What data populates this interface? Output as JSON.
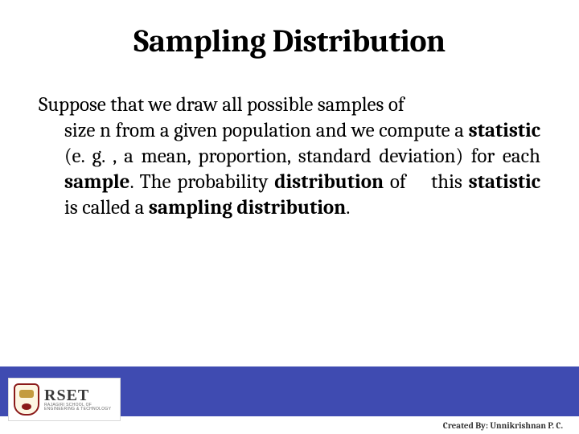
{
  "slide": {
    "title": "Sampling Distribution",
    "body": {
      "line1": "Suppose that we draw all possible samples of",
      "rest_parts": [
        {
          "t": "size n from a given population and we compute a ",
          "b": false
        },
        {
          "t": "statistic",
          "b": true
        },
        {
          "t": " (e. g. , a mean, proportion, standard deviation) for each ",
          "b": false
        },
        {
          "t": "sample",
          "b": true
        },
        {
          "t": ". The probability ",
          "b": false
        },
        {
          "t": "distribution",
          "b": true
        },
        {
          "t": " of    this ",
          "b": false
        },
        {
          "t": "statistic",
          "b": true
        },
        {
          "t": " is called a ",
          "b": false
        },
        {
          "t": "sampling distribution",
          "b": true
        },
        {
          "t": ".",
          "b": false
        }
      ]
    }
  },
  "footer": {
    "band_color": "#3f4bb1",
    "logo_main": "RSET",
    "logo_sub1": "RAJAGIRI SCHOOL OF",
    "logo_sub2": "ENGINEERING & TECHNOLOGY",
    "credit": "Created By: Unnikrishnan P. C."
  },
  "style": {
    "title_fontsize": 40,
    "body_fontsize": 25,
    "text_color": "#000000",
    "background": "#ffffff"
  }
}
